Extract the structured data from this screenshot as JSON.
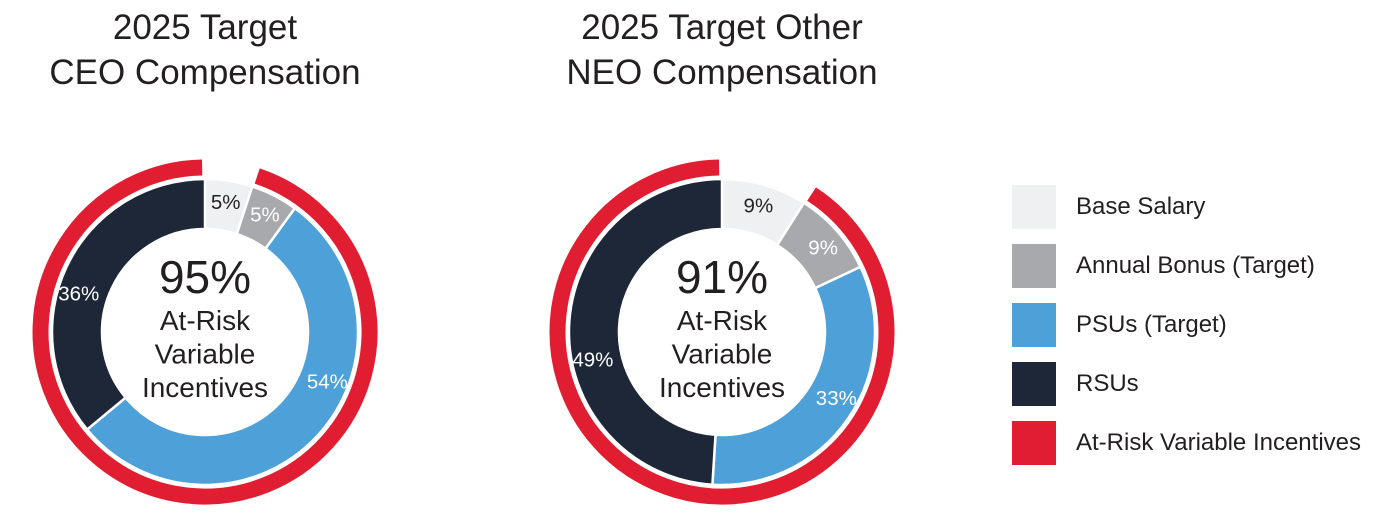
{
  "page_background": "#ffffff",
  "chart_data": [
    {
      "type": "pie",
      "subtype": "donut-with-outer-ring",
      "title_lines": [
        "2025 Target",
        "CEO Compensation"
      ],
      "center_label": {
        "value": "95%",
        "lines": [
          "At-Risk",
          "Variable",
          "Incentives"
        ]
      },
      "segments": [
        {
          "label": "Base Salary",
          "value": 5,
          "display": "5%",
          "color": "#eff0f2",
          "text_color": "#231f20",
          "label_angle_deg": 9
        },
        {
          "label": "Annual Bonus (Target)",
          "value": 5,
          "display": "5%",
          "color": "#a8a9ad",
          "text_color": "#ffffff",
          "label_angle_deg": 27
        },
        {
          "label": "PSUs (Target)",
          "value": 54,
          "display": "54%",
          "color": "#4da0d8",
          "text_color": "#ffffff",
          "label_angle_deg": 112
        },
        {
          "label": "RSUs",
          "value": 36,
          "display": "36%",
          "color": "#1d2737",
          "text_color": "#ffffff",
          "label_angle_deg": 287
        }
      ],
      "outer_ring": {
        "label": "At-Risk Variable Incentives",
        "value": 95,
        "color": "#e11e31",
        "start_deg": 18.5,
        "end_deg": 359
      },
      "layout_hints": {
        "start_angle_deg": 0,
        "direction": "clockwise",
        "legend_position": "right"
      }
    },
    {
      "type": "pie",
      "subtype": "donut-with-outer-ring",
      "title_lines": [
        "2025 Target Other",
        "NEO Compensation"
      ],
      "center_label": {
        "value": "91%",
        "lines": [
          "At-Risk",
          "Variable",
          "Incentives"
        ]
      },
      "segments": [
        {
          "label": "Base Salary",
          "value": 9,
          "display": "9%",
          "color": "#eff0f2",
          "text_color": "#231f20",
          "label_angle_deg": 16
        },
        {
          "label": "Annual Bonus (Target)",
          "value": 9,
          "display": "9%",
          "color": "#a8a9ad",
          "text_color": "#ffffff",
          "label_angle_deg": 50
        },
        {
          "label": "PSUs (Target)",
          "value": 33,
          "display": "33%",
          "color": "#4da0d8",
          "text_color": "#ffffff",
          "label_angle_deg": 120
        },
        {
          "label": "RSUs",
          "value": 49,
          "display": "49%",
          "color": "#1d2737",
          "text_color": "#ffffff",
          "label_angle_deg": 258
        }
      ],
      "outer_ring": {
        "label": "At-Risk Variable Incentives",
        "value": 91,
        "color": "#e11e31",
        "start_deg": 33,
        "end_deg": 359
      },
      "layout_hints": {
        "start_angle_deg": 0,
        "direction": "clockwise",
        "legend_position": "right"
      }
    }
  ],
  "legend": {
    "items": [
      {
        "label": "Base Salary",
        "color": "#eff0f2"
      },
      {
        "label": "Annual Bonus (Target)",
        "color": "#a8a9ad"
      },
      {
        "label": "PSUs (Target)",
        "color": "#4da0d8"
      },
      {
        "label": "RSUs",
        "color": "#1d2737"
      },
      {
        "label": "At-Risk Variable Incentives",
        "color": "#e11e31"
      }
    ]
  }
}
